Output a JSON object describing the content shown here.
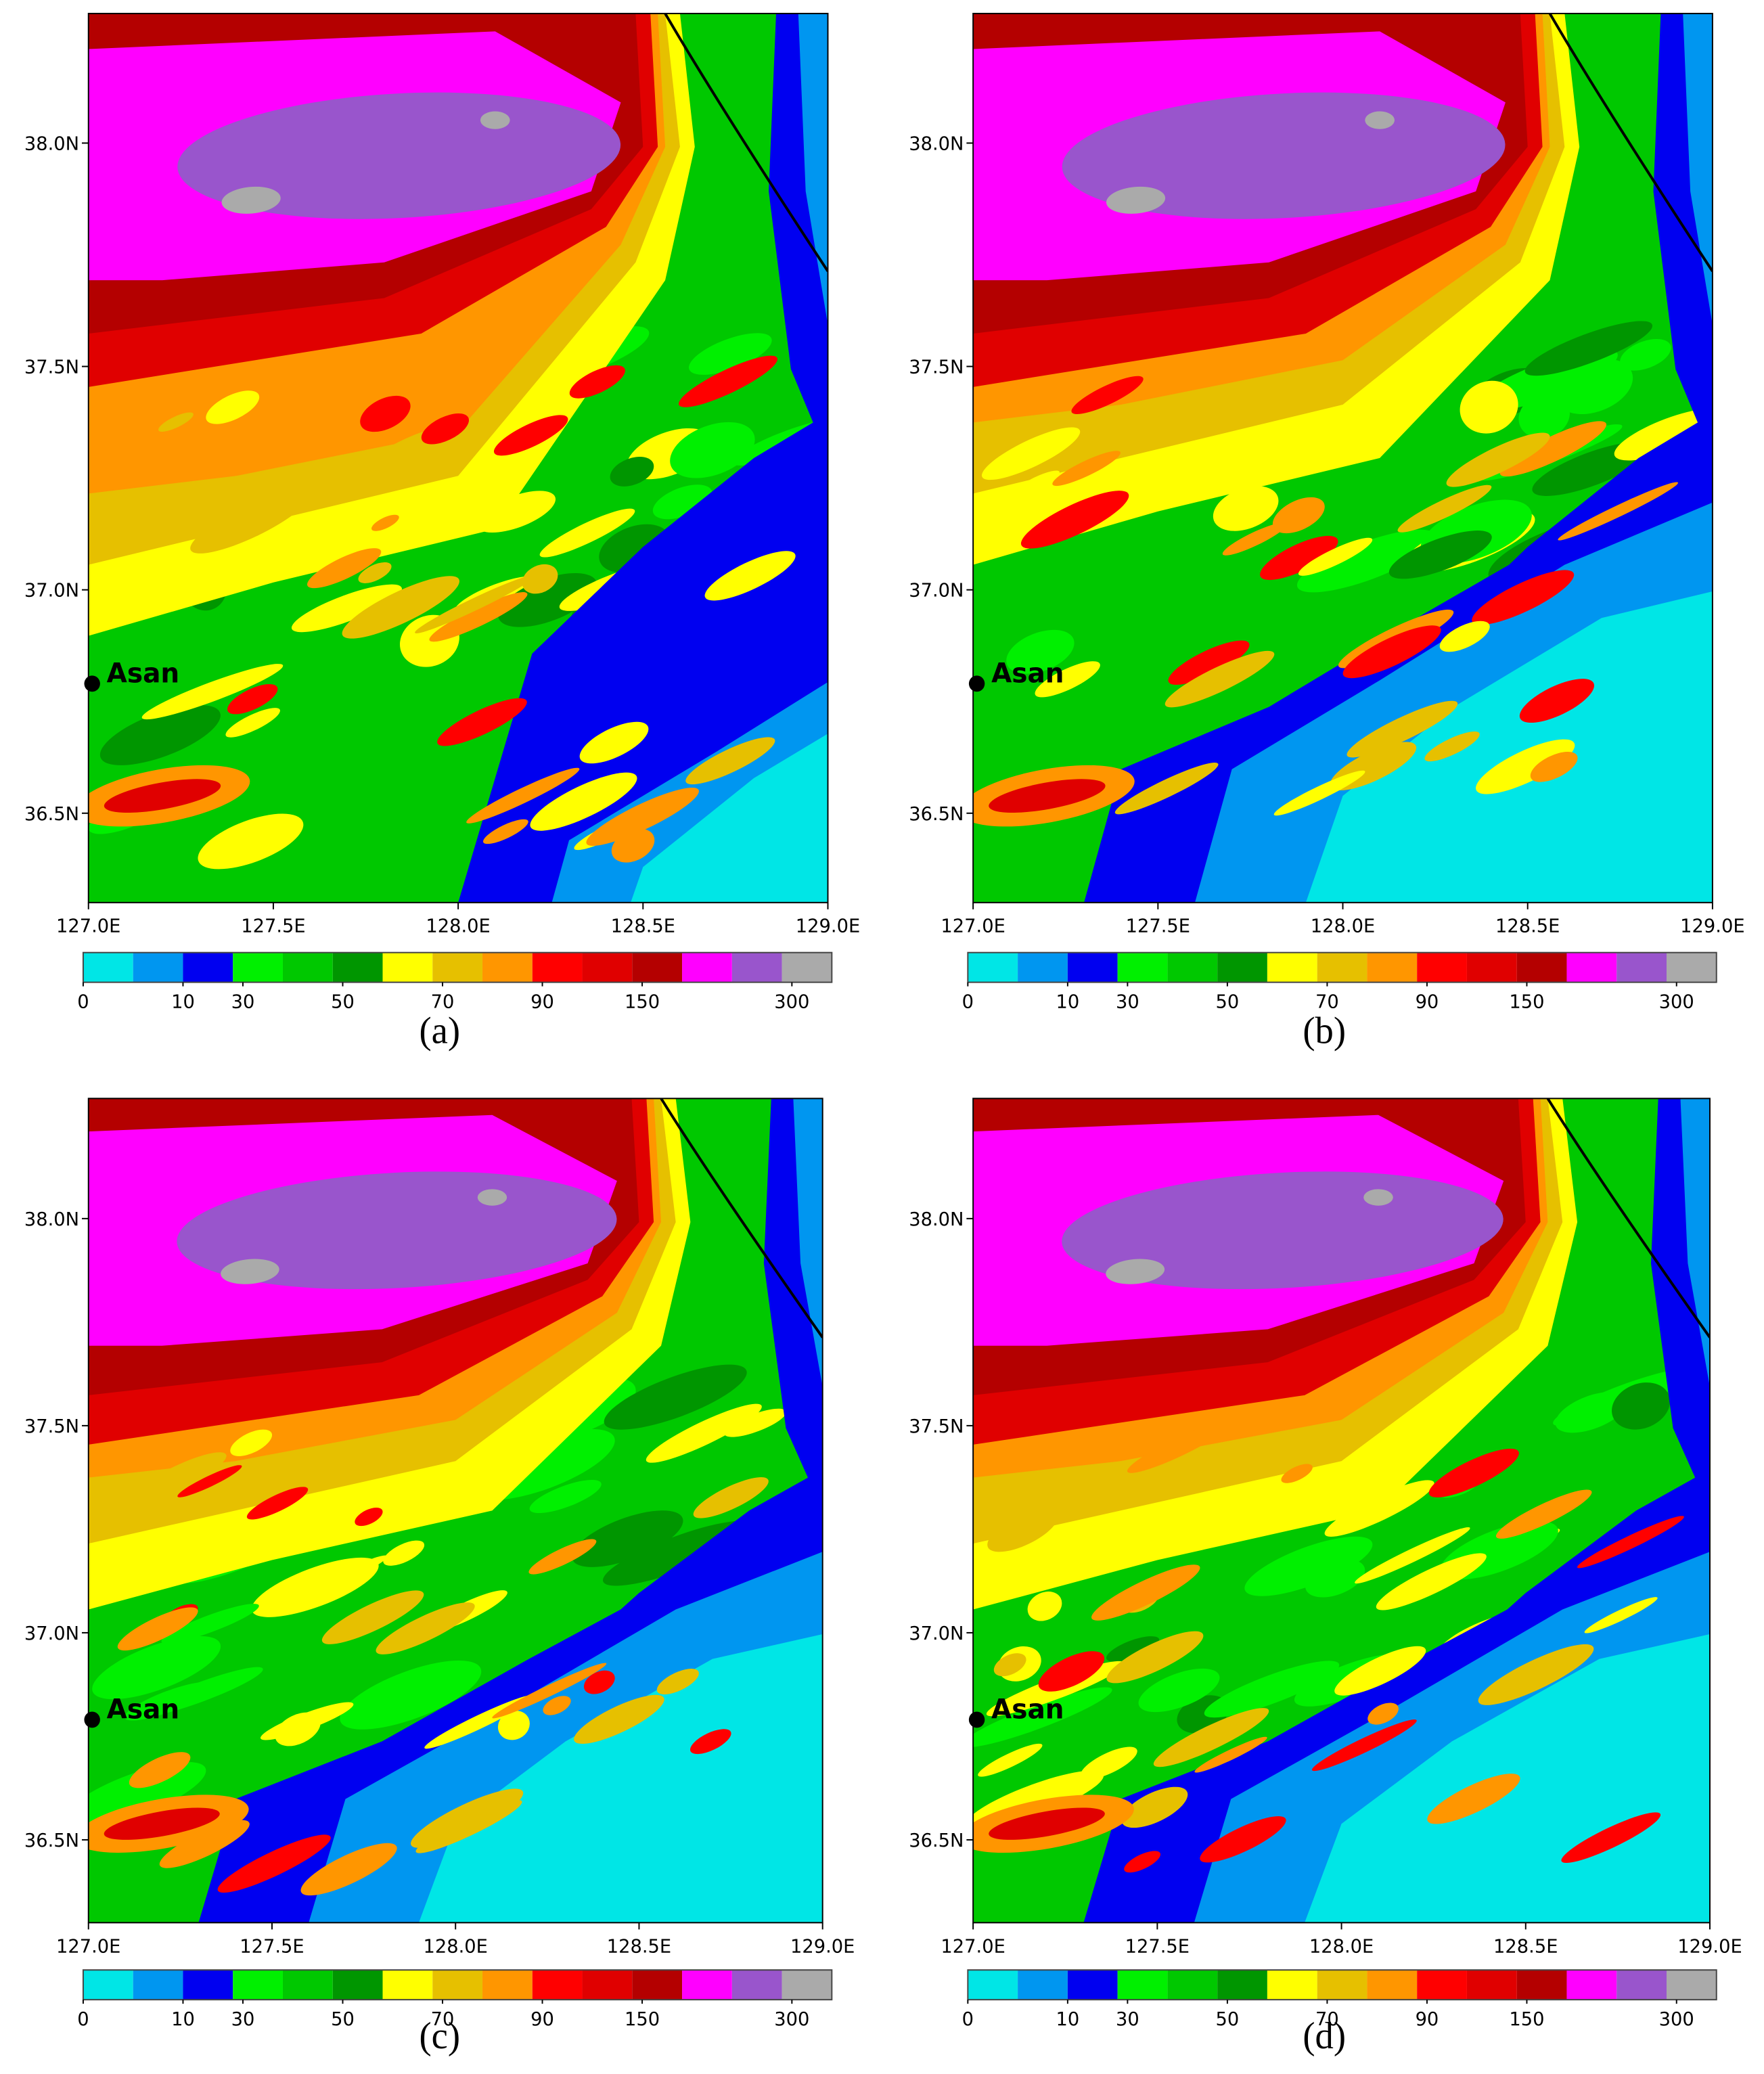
{
  "chart_data": [
    {
      "type": "contour",
      "panel_label": "(a)",
      "xlim": [
        127.0,
        129.0
      ],
      "ylim": [
        36.3,
        38.29
      ],
      "xticks": [
        {
          "value": 127.0,
          "label": "127.0E"
        },
        {
          "value": 127.5,
          "label": "127.5E"
        },
        {
          "value": 128.0,
          "label": "128.0E"
        },
        {
          "value": 128.5,
          "label": "128.5E"
        },
        {
          "value": 129.0,
          "label": "129.0E"
        }
      ],
      "yticks": [
        {
          "value": 36.5,
          "label": "36.5N"
        },
        {
          "value": 37.0,
          "label": "37.0N"
        },
        {
          "value": 37.5,
          "label": "37.5N"
        },
        {
          "value": 38.0,
          "label": "38.0N"
        }
      ],
      "annotation": {
        "text": "Asan",
        "lon": 127.01,
        "lat": 36.79
      },
      "colorbar": {
        "colors": [
          "#00e6e6",
          "#0096f0",
          "#0000f0",
          "#00f000",
          "#00c800",
          "#009600",
          "#ffff00",
          "#e6c000",
          "#ff9600",
          "#ff0000",
          "#e00000",
          "#b40000",
          "#ff00ff",
          "#9955cc",
          "#aaaaaa"
        ],
        "ticks": [
          0,
          10,
          30,
          50,
          70,
          90,
          150,
          300
        ]
      }
    },
    {
      "type": "contour",
      "panel_label": "(b)",
      "xlim": [
        127.0,
        129.0
      ],
      "ylim": [
        36.3,
        38.29
      ],
      "xticks": [
        {
          "value": 127.0,
          "label": "127.0E"
        },
        {
          "value": 127.5,
          "label": "127.5E"
        },
        {
          "value": 128.0,
          "label": "128.0E"
        },
        {
          "value": 128.5,
          "label": "128.5E"
        },
        {
          "value": 129.0,
          "label": "129.0E"
        }
      ],
      "yticks": [
        {
          "value": 36.5,
          "label": "36.5N"
        },
        {
          "value": 37.0,
          "label": "37.0N"
        },
        {
          "value": 37.5,
          "label": "37.5N"
        },
        {
          "value": 38.0,
          "label": "38.0N"
        }
      ],
      "annotation": {
        "text": "Asan",
        "lon": 127.01,
        "lat": 36.79
      },
      "colorbar": {
        "colors": [
          "#00e6e6",
          "#0096f0",
          "#0000f0",
          "#00f000",
          "#00c800",
          "#009600",
          "#ffff00",
          "#e6c000",
          "#ff9600",
          "#ff0000",
          "#e00000",
          "#b40000",
          "#ff00ff",
          "#9955cc",
          "#aaaaaa"
        ],
        "ticks": [
          0,
          10,
          30,
          50,
          70,
          90,
          150,
          300
        ]
      }
    },
    {
      "type": "contour",
      "panel_label": "(c)",
      "xlim": [
        127.0,
        129.0
      ],
      "ylim": [
        36.3,
        38.29
      ],
      "xticks": [
        {
          "value": 127.0,
          "label": "127.0E"
        },
        {
          "value": 127.5,
          "label": "127.5E"
        },
        {
          "value": 128.0,
          "label": "128.0E"
        },
        {
          "value": 128.5,
          "label": "128.5E"
        },
        {
          "value": 129.0,
          "label": "129.0E"
        }
      ],
      "yticks": [
        {
          "value": 36.5,
          "label": "36.5N"
        },
        {
          "value": 37.0,
          "label": "37.0N"
        },
        {
          "value": 37.5,
          "label": "37.5N"
        },
        {
          "value": 38.0,
          "label": "38.0N"
        }
      ],
      "annotation": {
        "text": "Asan",
        "lon": 127.01,
        "lat": 36.79
      },
      "colorbar": {
        "colors": [
          "#00e6e6",
          "#0096f0",
          "#0000f0",
          "#00f000",
          "#00c800",
          "#009600",
          "#ffff00",
          "#e6c000",
          "#ff9600",
          "#ff0000",
          "#e00000",
          "#b40000",
          "#ff00ff",
          "#9955cc",
          "#aaaaaa"
        ],
        "ticks": [
          0,
          10,
          30,
          50,
          70,
          90,
          150,
          300
        ]
      }
    },
    {
      "type": "contour",
      "panel_label": "(d)",
      "xlim": [
        127.0,
        129.0
      ],
      "ylim": [
        36.3,
        38.29
      ],
      "xticks": [
        {
          "value": 127.0,
          "label": "127.0E"
        },
        {
          "value": 127.5,
          "label": "127.5E"
        },
        {
          "value": 128.0,
          "label": "128.0E"
        },
        {
          "value": 128.5,
          "label": "128.5E"
        },
        {
          "value": 129.0,
          "label": "129.0E"
        }
      ],
      "yticks": [
        {
          "value": 36.5,
          "label": "36.5N"
        },
        {
          "value": 37.0,
          "label": "37.0N"
        },
        {
          "value": 37.5,
          "label": "37.5N"
        },
        {
          "value": 38.0,
          "label": "38.0N"
        }
      ],
      "annotation": {
        "text": "Asan",
        "lon": 127.01,
        "lat": 36.79
      },
      "colorbar": {
        "colors": [
          "#00e6e6",
          "#0096f0",
          "#0000f0",
          "#00f000",
          "#00c800",
          "#009600",
          "#ffff00",
          "#e6c000",
          "#ff9600",
          "#ff0000",
          "#e00000",
          "#b40000",
          "#ff00ff",
          "#9955cc",
          "#aaaaaa"
        ],
        "ticks": [
          0,
          10,
          30,
          50,
          70,
          90,
          150,
          300
        ]
      }
    }
  ]
}
